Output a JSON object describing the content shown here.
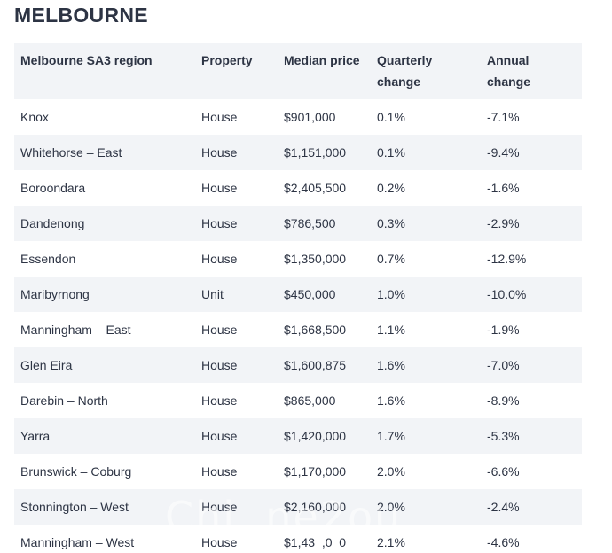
{
  "page": {
    "heading": "MELBOURNE"
  },
  "table": {
    "headers": [
      "Melbourne SA3 region",
      "Property",
      "Median price",
      "Quarterly change",
      "Annual change"
    ],
    "rows": [
      [
        "Knox",
        "House",
        "$901,000",
        "0.1%",
        "-7.1%"
      ],
      [
        "Whitehorse – East",
        "House",
        "$1,151,000",
        "0.1%",
        "-9.4%"
      ],
      [
        "Boroondara",
        "House",
        "$2,405,500",
        "0.2%",
        "-1.6%"
      ],
      [
        "Dandenong",
        "House",
        "$786,500",
        "0.3%",
        "-2.9%"
      ],
      [
        "Essendon",
        "House",
        "$1,350,000",
        "0.7%",
        "-12.9%"
      ],
      [
        "Maribyrnong",
        "Unit",
        "$450,000",
        "1.0%",
        "-10.0%"
      ],
      [
        "Manningham – East",
        "House",
        "$1,668,500",
        "1.1%",
        "-1.9%"
      ],
      [
        "Glen Eira",
        "House",
        "$1,600,875",
        "1.6%",
        "-7.0%"
      ],
      [
        "Darebin – North",
        "House",
        "$865,000",
        "1.6%",
        "-8.9%"
      ],
      [
        "Yarra",
        "House",
        "$1,420,000",
        "1.7%",
        "-5.3%"
      ],
      [
        "Brunswick – Coburg",
        "House",
        "$1,170,000",
        "2.0%",
        "-6.6%"
      ],
      [
        "Stonnington – West",
        "House",
        "$2,160,000",
        "2.0%",
        "-2.4%"
      ],
      [
        "Manningham – West",
        "House",
        "$1,43_,0_0",
        "2.1%",
        "-4.6%"
      ]
    ]
  },
  "watermark": {
    "text": "Chi..ne2ou"
  }
}
